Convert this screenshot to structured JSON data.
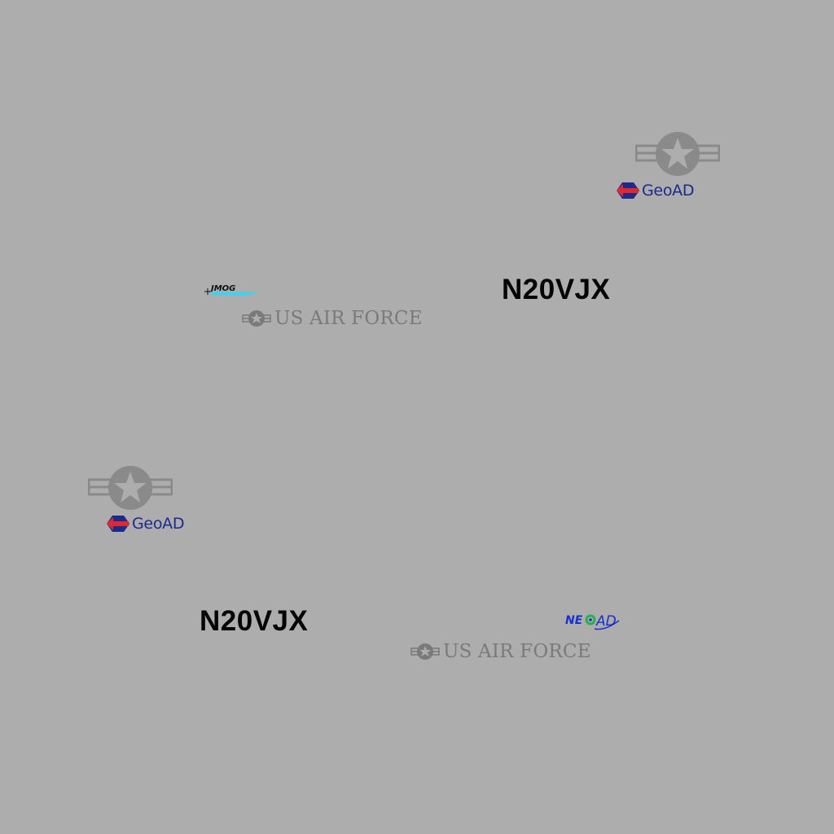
{
  "canvas": {
    "background": "#adadad"
  },
  "logos": {
    "geoad_text": "GeoAD",
    "usaf_text": "US AIR FORCE",
    "tail_number": "N20VJX",
    "jmog_text": "JMOG",
    "neoad_text": "NEOAD",
    "icons": [
      "roundel-star-icon",
      "geoad-logo-icon",
      "jmog-logo-icon",
      "neoad-logo-icon"
    ]
  },
  "colors": {
    "roundel_gray": "#8a8a8a",
    "usaf_gray": "#7a7a7a",
    "geoad_blue": "#1c2a8c",
    "geoad_red": "#e0282e",
    "tail_black": "#050505",
    "jmog_cyan": "#3fd2f0",
    "neoad_blue": "#1a2fcc",
    "neoad_green": "#23b24b"
  }
}
